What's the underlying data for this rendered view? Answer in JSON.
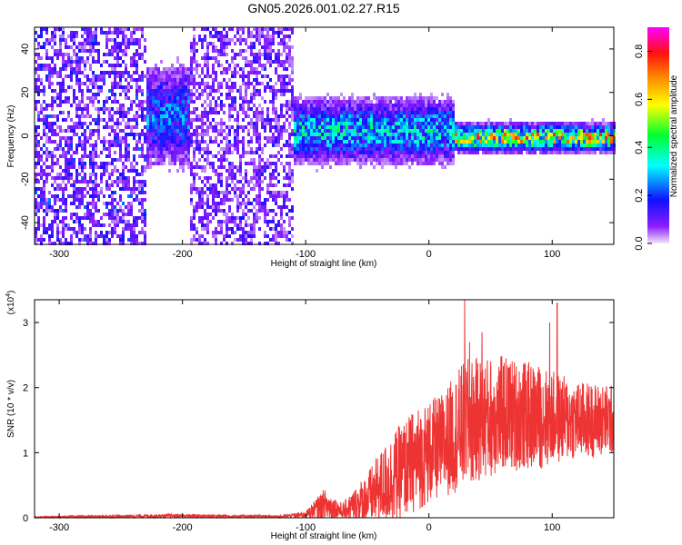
{
  "chart_data": [
    {
      "type": "heatmap",
      "title": "GN05.2026.001.02.27.R15",
      "xlabel": "Height of straight line (km)",
      "ylabel": "Frequency (Hz)",
      "xlim": [
        -320,
        150
      ],
      "ylim": [
        -50,
        50
      ],
      "x_ticks": [
        -300,
        -200,
        -100,
        0,
        100
      ],
      "y_ticks": [
        -40,
        -20,
        0,
        20,
        40
      ],
      "colorbar": {
        "label": "Normalized spectral amplitude",
        "range": [
          0,
          0.9
        ],
        "ticks": [
          0.0,
          0.2,
          0.4,
          0.6,
          0.8
        ],
        "colors": [
          "#e8d8f4",
          "#7f00ff",
          "#0000ff",
          "#00ffff",
          "#00ff00",
          "#ffff00",
          "#ff8000",
          "#ff0000",
          "#ff00ff"
        ]
      },
      "series": [
        {
          "x_range": [
            -320,
            -230
          ],
          "freq_center": 0,
          "freq_spread": 50,
          "amplitude": 0.12
        },
        {
          "x_range": [
            -230,
            -195
          ],
          "freq_center": 10,
          "freq_spread": 20,
          "amplitude": 0.2
        },
        {
          "x_range": [
            -195,
            -110
          ],
          "freq_center": 0,
          "freq_spread": 50,
          "amplitude": 0.1
        },
        {
          "x_range": [
            -110,
            20
          ],
          "freq_center": 3,
          "freq_spread": 12,
          "amplitude": 0.28
        },
        {
          "x_range": [
            20,
            150
          ],
          "freq_center": 0,
          "freq_spread": 5,
          "amplitude": 0.55
        }
      ]
    },
    {
      "type": "line",
      "xlabel": "Height of straight line (km)",
      "ylabel": "SNR (10 * v/v)",
      "yscale_label": "(x10",
      "yscale_exp": "4",
      "xlim": [
        -320,
        150
      ],
      "ylim": [
        0,
        3.35
      ],
      "x_ticks": [
        -300,
        -200,
        -100,
        0,
        100
      ],
      "y_ticks": [
        0,
        1,
        2,
        3
      ],
      "color": "#ee3333",
      "envelope": [
        {
          "x": -320,
          "mean": 0.01,
          "spread": 0.01
        },
        {
          "x": -210,
          "mean": 0.03,
          "spread": 0.03
        },
        {
          "x": -120,
          "mean": 0.02,
          "spread": 0.02
        },
        {
          "x": -100,
          "mean": 0.05,
          "spread": 0.05
        },
        {
          "x": -85,
          "mean": 0.2,
          "spread": 0.25
        },
        {
          "x": -70,
          "mean": 0.1,
          "spread": 0.12
        },
        {
          "x": -50,
          "mean": 0.3,
          "spread": 0.4
        },
        {
          "x": -30,
          "mean": 0.6,
          "spread": 0.7
        },
        {
          "x": -10,
          "mean": 0.9,
          "spread": 0.8
        },
        {
          "x": 10,
          "mean": 1.1,
          "spread": 0.8
        },
        {
          "x": 30,
          "mean": 1.45,
          "spread": 1.0
        },
        {
          "x": 60,
          "mean": 1.6,
          "spread": 0.9
        },
        {
          "x": 90,
          "mean": 1.55,
          "spread": 0.8
        },
        {
          "x": 120,
          "mean": 1.5,
          "spread": 0.6
        },
        {
          "x": 150,
          "mean": 1.5,
          "spread": 0.55
        }
      ],
      "peaks": [
        {
          "x": 29,
          "y": 3.35
        },
        {
          "x": 104,
          "y": 3.3
        },
        {
          "x": 43,
          "y": 2.85
        },
        {
          "x": 98,
          "y": 3.0
        },
        {
          "x": 33,
          "y": 2.7
        }
      ]
    }
  ]
}
